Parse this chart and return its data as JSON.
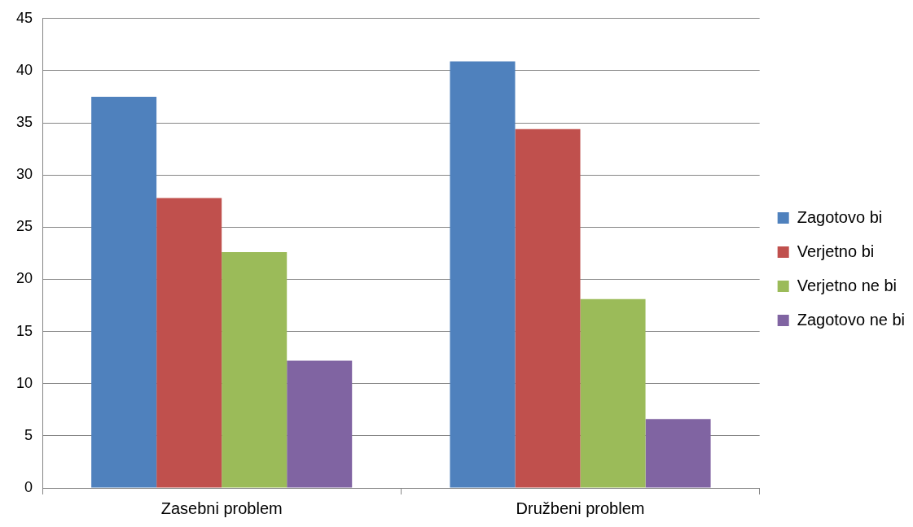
{
  "chart_data": {
    "type": "bar",
    "categories": [
      "Zasebni problem",
      "Družbeni problem"
    ],
    "series": [
      {
        "name": "Zagotovo bi",
        "color": "#4f81bd",
        "values": [
          37.5,
          40.9
        ]
      },
      {
        "name": "Verjetno bi",
        "color": "#c0504d",
        "values": [
          27.8,
          34.4
        ]
      },
      {
        "name": "Verjetno ne bi",
        "color": "#9bbb59",
        "values": [
          22.6,
          18.1
        ]
      },
      {
        "name": "Zagotovo ne bi",
        "color": "#8064a2",
        "values": [
          12.2,
          6.6
        ]
      }
    ],
    "ylim": [
      0,
      45
    ],
    "yticks": [
      0,
      5,
      10,
      15,
      20,
      25,
      30,
      35,
      40,
      45
    ],
    "grid": "y",
    "legend": "right"
  }
}
